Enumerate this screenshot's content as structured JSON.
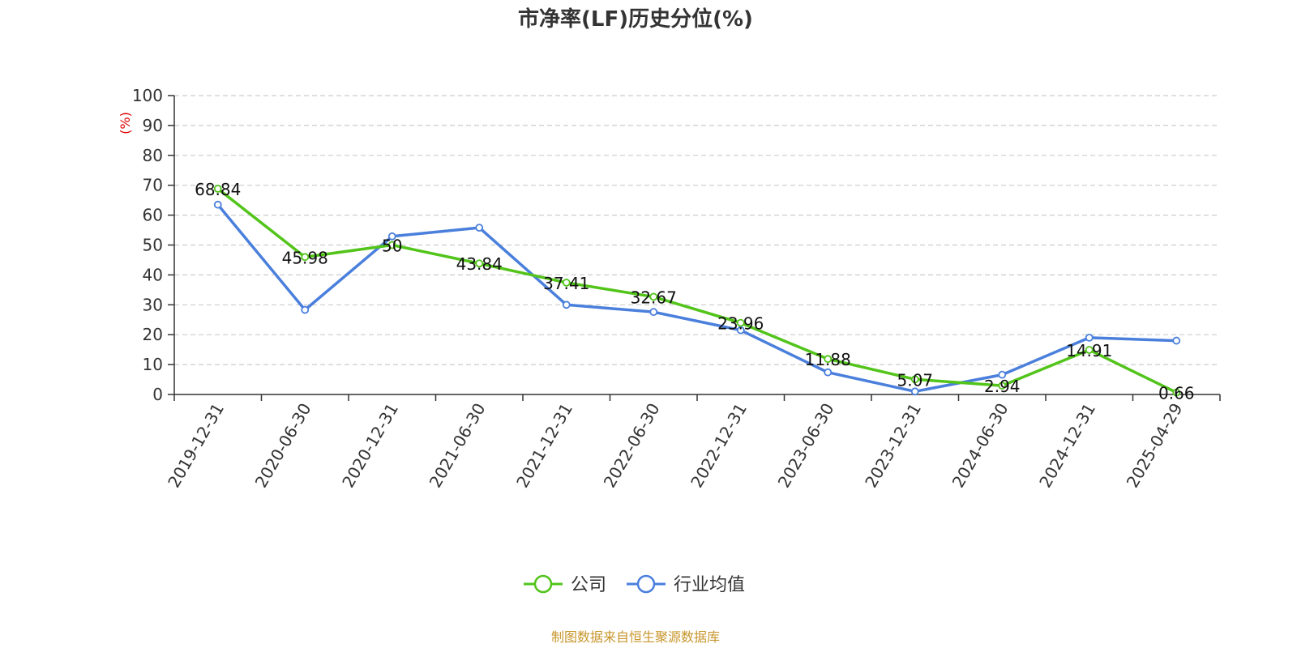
{
  "chart_data": {
    "type": "line",
    "title": "市净率(LF)历史分位(%)",
    "ylabel": "(%)",
    "xlabel": "",
    "ylim": [
      0,
      100
    ],
    "yticks": [
      0,
      10,
      20,
      30,
      40,
      50,
      60,
      70,
      80,
      90,
      100
    ],
    "grid": true,
    "legend_position": "bottom-center",
    "categories": [
      "2019-12-31",
      "2020-06-30",
      "2020-12-31",
      "2021-06-30",
      "2021-12-31",
      "2022-06-30",
      "2022-12-31",
      "2023-06-30",
      "2023-12-31",
      "2024-06-30",
      "2024-12-31",
      "2025-04-29"
    ],
    "series": [
      {
        "name": "公司",
        "color": "#52c41a",
        "values": [
          68.84,
          45.98,
          50,
          43.84,
          37.41,
          32.67,
          23.96,
          11.88,
          5.07,
          2.94,
          14.91,
          0.66
        ],
        "labels": [
          "68.84",
          "45.98",
          "50",
          "43.84",
          "37.41",
          "32.67",
          "23.96",
          "11.88",
          "5.07",
          "2.94",
          "14.91",
          "0.66"
        ]
      },
      {
        "name": "行业均值",
        "color": "#4a7fdc",
        "values": [
          63.5,
          28.3,
          52.9,
          55.8,
          30.0,
          27.6,
          21.5,
          7.4,
          1.0,
          6.6,
          19.0,
          18.0
        ]
      }
    ],
    "ylabel_color": "#e00000",
    "source": "制图数据来自恒生聚源数据库",
    "source_color": "#c8962c"
  }
}
